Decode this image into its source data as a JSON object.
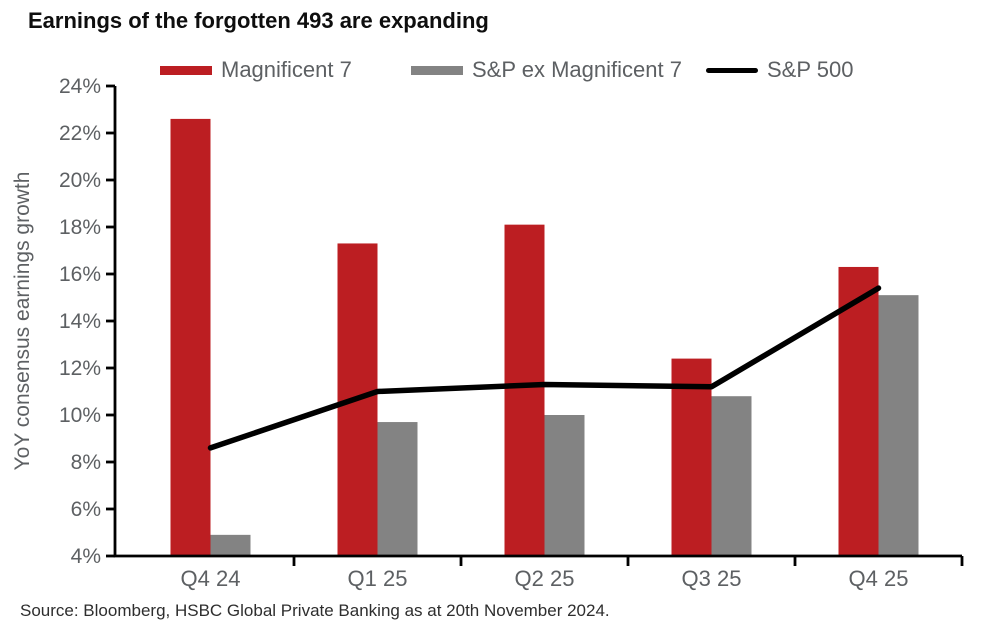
{
  "title": "Earnings of the forgotten 493 are expanding",
  "legend": {
    "items": [
      {
        "label": "Magnificent 7",
        "color": "#bc1e22",
        "swatch": "bar"
      },
      {
        "label": "S&P ex Magnificent 7",
        "color": "#838383",
        "swatch": "bar"
      },
      {
        "label": "S&P 500",
        "color": "#000000",
        "swatch": "line"
      }
    ]
  },
  "source": "Source: Bloomberg, HSBC Global Private Banking as at 20th November 2024.",
  "colors": {
    "axis": "#000000",
    "chart_text": "#5d6063",
    "mag7_red": "#bc1e22",
    "ex_mag7_gray": "#838383",
    "sp500_black": "#000000"
  },
  "chart_data": {
    "type": "bar",
    "title": "Earnings of the forgotten 493 are expanding",
    "categories": [
      "Q4 24",
      "Q1 25",
      "Q2 25",
      "Q3 25",
      "Q4 25"
    ],
    "series": [
      {
        "name": "Magnificent 7",
        "type": "bar",
        "color": "#bc1e22",
        "values": [
          22.6,
          17.3,
          18.1,
          12.4,
          16.3
        ]
      },
      {
        "name": "S&P ex Magnificent 7",
        "type": "bar",
        "color": "#838383",
        "values": [
          4.9,
          9.7,
          10.0,
          10.8,
          15.1
        ]
      },
      {
        "name": "S&P 500",
        "type": "line",
        "color": "#000000",
        "values": [
          8.6,
          11.0,
          11.3,
          11.2,
          15.4
        ]
      }
    ],
    "xlabel": "",
    "ylabel": "YoY consensus earnings growth",
    "ylim": [
      4,
      24
    ],
    "ytick_step": 2,
    "tick_suffix": "%",
    "grid": false,
    "legend_position": "top"
  }
}
